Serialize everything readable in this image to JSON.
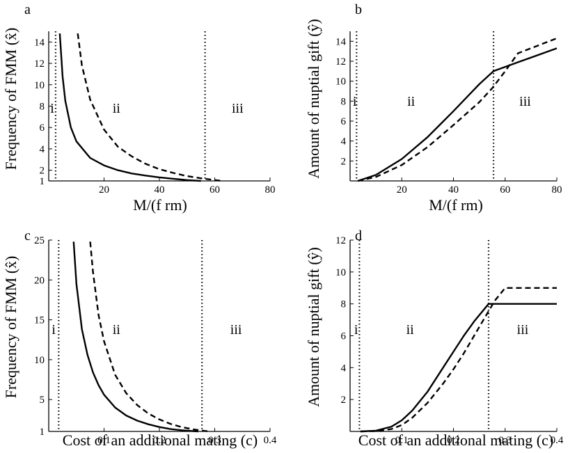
{
  "chart_data": [
    {
      "panel": "a",
      "type": "line",
      "ylabel": "Frequency of FMM (x̂)",
      "xlabel": "M/(f rm)",
      "xlim": [
        0,
        80
      ],
      "ylim": [
        1,
        15
      ],
      "xticks": [
        20,
        40,
        60,
        80
      ],
      "yticks": [
        1,
        2,
        4,
        6,
        8,
        10,
        12,
        14
      ],
      "vlines": [
        2.5,
        56.5
      ],
      "regions": [
        "i",
        "ii",
        "iii"
      ],
      "series": [
        {
          "style": "solid",
          "x": [
            4,
            5,
            6,
            8,
            10,
            15,
            20,
            25,
            30,
            35,
            40,
            45,
            50,
            55
          ],
          "y": [
            14.8,
            10.8,
            8.5,
            6.0,
            4.7,
            3.15,
            2.45,
            2.0,
            1.7,
            1.5,
            1.33,
            1.2,
            1.08,
            1.0
          ]
        },
        {
          "style": "dashed",
          "x": [
            10.5,
            12,
            15,
            20,
            25,
            30,
            35,
            40,
            45,
            50,
            55,
            60,
            63
          ],
          "y": [
            14.8,
            11.8,
            8.6,
            5.8,
            4.2,
            3.3,
            2.6,
            2.1,
            1.75,
            1.45,
            1.25,
            1.08,
            1.0
          ]
        }
      ]
    },
    {
      "panel": "b",
      "type": "line",
      "ylabel": "Amount of nuptial gift (ŷ)",
      "xlabel": "M/(f rm)",
      "xlim": [
        0,
        80
      ],
      "ylim": [
        0,
        15
      ],
      "xticks": [
        20,
        40,
        60,
        80
      ],
      "yticks": [
        2,
        4,
        6,
        8,
        10,
        12,
        14
      ],
      "vlines": [
        2.5,
        55.5
      ],
      "regions": [
        "i",
        "ii",
        "iii"
      ],
      "series": [
        {
          "style": "solid",
          "x": [
            3,
            10,
            20,
            30,
            40,
            50,
            55.5,
            65,
            80
          ],
          "y": [
            0,
            0.6,
            2.2,
            4.4,
            7.0,
            9.7,
            11.0,
            11.9,
            13.3
          ]
        },
        {
          "style": "dashed",
          "x": [
            3,
            10,
            20,
            30,
            40,
            50,
            55,
            60,
            65,
            80
          ],
          "y": [
            0,
            0.4,
            1.6,
            3.4,
            5.6,
            7.9,
            9.3,
            11.0,
            12.8,
            14.3
          ]
        }
      ]
    },
    {
      "panel": "c",
      "type": "line",
      "ylabel": "Frequency of FMM (x̂)",
      "xlabel": "Cost of an additional mating (c)",
      "xlim": [
        0,
        0.4
      ],
      "ylim": [
        1,
        25
      ],
      "xticks": [
        0.1,
        0.2,
        0.3,
        0.4
      ],
      "yticks": [
        1,
        5,
        10,
        15,
        20,
        25
      ],
      "vlines": [
        0.018,
        0.277
      ],
      "regions": [
        "i",
        "ii",
        "iii"
      ],
      "series": [
        {
          "style": "solid",
          "x": [
            0.045,
            0.05,
            0.06,
            0.07,
            0.08,
            0.09,
            0.1,
            0.12,
            0.14,
            0.16,
            0.18,
            0.2,
            0.22,
            0.24,
            0.27
          ],
          "y": [
            24.8,
            19.5,
            13.8,
            10.6,
            8.4,
            6.8,
            5.6,
            4.0,
            3.0,
            2.35,
            1.9,
            1.55,
            1.3,
            1.15,
            1.0
          ]
        },
        {
          "style": "dashed",
          "x": [
            0.075,
            0.08,
            0.09,
            0.1,
            0.12,
            0.14,
            0.16,
            0.18,
            0.2,
            0.22,
            0.24,
            0.26,
            0.28,
            0.29
          ],
          "y": [
            24.8,
            21.0,
            15.6,
            12.3,
            8.1,
            5.8,
            4.3,
            3.25,
            2.5,
            1.95,
            1.55,
            1.28,
            1.08,
            1.0
          ]
        }
      ]
    },
    {
      "panel": "d",
      "type": "line",
      "ylabel": "Amount of nuptial gift (ŷ)",
      "xlabel": "Cost of an additional mating (c)",
      "xlim": [
        0,
        0.4
      ],
      "ylim": [
        0,
        12
      ],
      "xticks": [
        0.1,
        0.2,
        0.3,
        0.4
      ],
      "yticks": [
        2,
        4,
        6,
        8,
        10,
        12
      ],
      "vlines": [
        0.018,
        0.268
      ],
      "regions": [
        "i",
        "ii",
        "iii"
      ],
      "series": [
        {
          "style": "solid",
          "x": [
            0.02,
            0.05,
            0.08,
            0.1,
            0.12,
            0.15,
            0.18,
            0.2,
            0.22,
            0.24,
            0.268,
            0.3,
            0.4
          ],
          "y": [
            0,
            0.05,
            0.3,
            0.7,
            1.3,
            2.5,
            4.0,
            5.0,
            6.0,
            6.9,
            8.0,
            8.0,
            8.0
          ]
        },
        {
          "style": "dashed",
          "x": [
            0.02,
            0.05,
            0.08,
            0.1,
            0.12,
            0.15,
            0.18,
            0.2,
            0.22,
            0.24,
            0.26,
            0.28,
            0.3,
            0.4
          ],
          "y": [
            0,
            0.02,
            0.15,
            0.4,
            0.85,
            1.8,
            3.0,
            3.9,
            4.9,
            6.0,
            7.1,
            8.2,
            9.0,
            9.0
          ]
        }
      ]
    }
  ]
}
